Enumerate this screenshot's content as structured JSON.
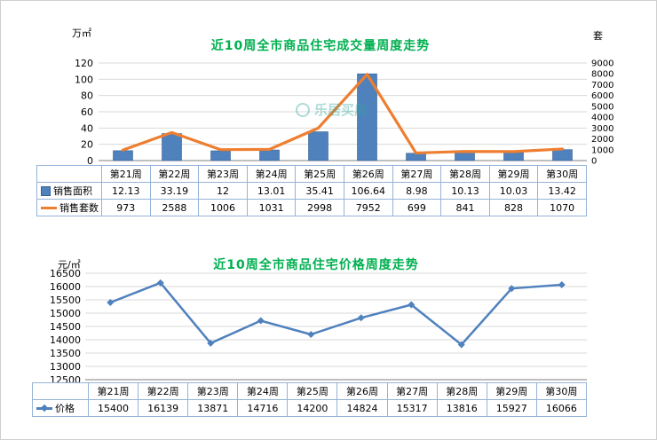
{
  "watermark": {
    "text": "乐居买房",
    "color": "#35a79c"
  },
  "colors": {
    "bar_blue": "#4f81bd",
    "bar_blue_dark": "#38618f",
    "line_orange": "#ee7e30",
    "line_blue": "#4f81bd",
    "title_green": "#00b050",
    "table_border": "#95b3d7",
    "grid": "#d9d9d9",
    "axis": "#7f7f7f",
    "text": "#000000"
  },
  "chart_data": [
    {
      "type": "bar",
      "title": "近10周全市商品住宅成交量周度走势",
      "left_axis_label": "万㎡",
      "right_axis_label": "套",
      "categories": [
        "第21周",
        "第22周",
        "第23周",
        "第24周",
        "第25周",
        "第26周",
        "第27周",
        "第28周",
        "第29周",
        "第30周"
      ],
      "left_ylim": [
        0,
        120
      ],
      "left_ticks": [
        0,
        20,
        40,
        60,
        80,
        100,
        120
      ],
      "right_ylim": [
        0,
        9000
      ],
      "right_ticks": [
        0,
        1000,
        2000,
        3000,
        4000,
        5000,
        6000,
        7000,
        8000,
        9000
      ],
      "grid": true,
      "legend_position": "table-left",
      "series": [
        {
          "name": "销售面积",
          "kind": "bar",
          "axis": "left",
          "legend": "bar",
          "values": [
            12.13,
            33.19,
            12,
            13.01,
            35.41,
            106.64,
            8.98,
            10.13,
            10.03,
            13.42
          ]
        },
        {
          "name": "销售套数",
          "kind": "line",
          "axis": "right",
          "legend": "line",
          "values": [
            973,
            2588,
            1006,
            1031,
            2998,
            7952,
            699,
            841,
            828,
            1070
          ]
        }
      ]
    },
    {
      "type": "line",
      "title": "近10周全市商品住宅价格周度走势",
      "left_axis_label": "元/㎡",
      "categories": [
        "第21周",
        "第22周",
        "第23周",
        "第24周",
        "第25周",
        "第26周",
        "第27周",
        "第28周",
        "第29周",
        "第30周"
      ],
      "left_ylim": [
        12500,
        16500
      ],
      "left_ticks": [
        12500,
        13000,
        13500,
        14000,
        14500,
        15000,
        15500,
        16000,
        16500
      ],
      "grid": true,
      "legend_position": "table-left",
      "series": [
        {
          "name": "价格",
          "kind": "line",
          "axis": "left",
          "legend": "line-diamond",
          "values": [
            15400,
            16139,
            13871,
            14716,
            14200,
            14824,
            15317,
            13816,
            15927,
            16066
          ]
        }
      ]
    }
  ]
}
